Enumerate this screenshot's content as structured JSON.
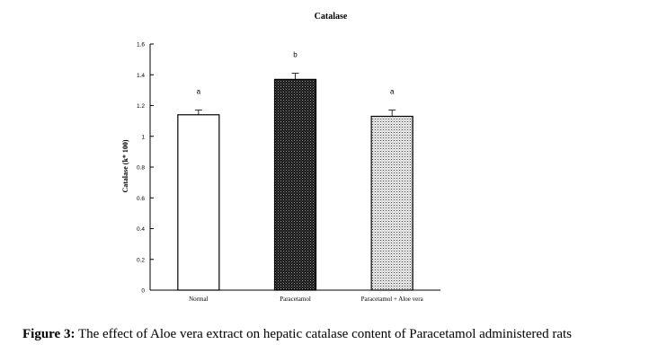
{
  "chart_data": {
    "type": "bar",
    "title": "Catalase",
    "xlabel": "",
    "ylabel": "Catalase (k* 100)",
    "ylim": [
      0,
      1.6
    ],
    "yticks": [
      0,
      0.2,
      0.4,
      0.6,
      0.8,
      1,
      1.2,
      1.4,
      1.6
    ],
    "ytick_labels": [
      "0",
      "0.2",
      "0.4",
      "0.6",
      "0.8",
      "1",
      "1.2",
      "1.4",
      "1.6"
    ],
    "categories": [
      "Normal",
      "Paracetamol",
      "Paracetamol + Aloe vera"
    ],
    "values": [
      1.14,
      1.37,
      1.13
    ],
    "errors": [
      0.03,
      0.04,
      0.04
    ],
    "significance_labels": [
      "a",
      "b",
      "a"
    ],
    "bar_fills": [
      "white",
      "dense-dots",
      "light-dots"
    ],
    "grid": false,
    "legend": "none"
  },
  "caption": {
    "label": "Figure 3:",
    "text": " The effect of Aloe vera extract on hepatic catalase content of Paracetamol administered rats"
  }
}
